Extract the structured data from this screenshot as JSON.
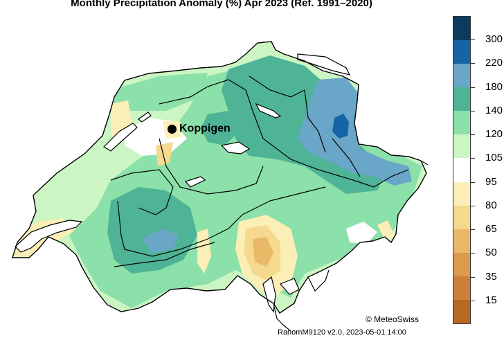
{
  "title": "Monthly Precipitation Anomaly (%) Apr 2023  (Ref. 1991–2020)",
  "station": {
    "name": "Koppigen"
  },
  "legend": {
    "labels": [
      "300",
      "220",
      "180",
      "140",
      "120",
      "105",
      "95",
      "80",
      "65",
      "50",
      "35",
      "15"
    ],
    "colors": [
      "#0b3b5e",
      "#1565a6",
      "#6aa6c8",
      "#4eb495",
      "#8ce0a9",
      "#ccf5c4",
      "#ffffff",
      "#fbeeb6",
      "#f4d98f",
      "#eab968",
      "#db9a4c",
      "#cc7f3a",
      "#b76a22"
    ]
  },
  "footer": {
    "copyright": "© MeteoSwiss",
    "version": "RanomM9120 v2.0, 2023-05-01 14:00"
  }
}
